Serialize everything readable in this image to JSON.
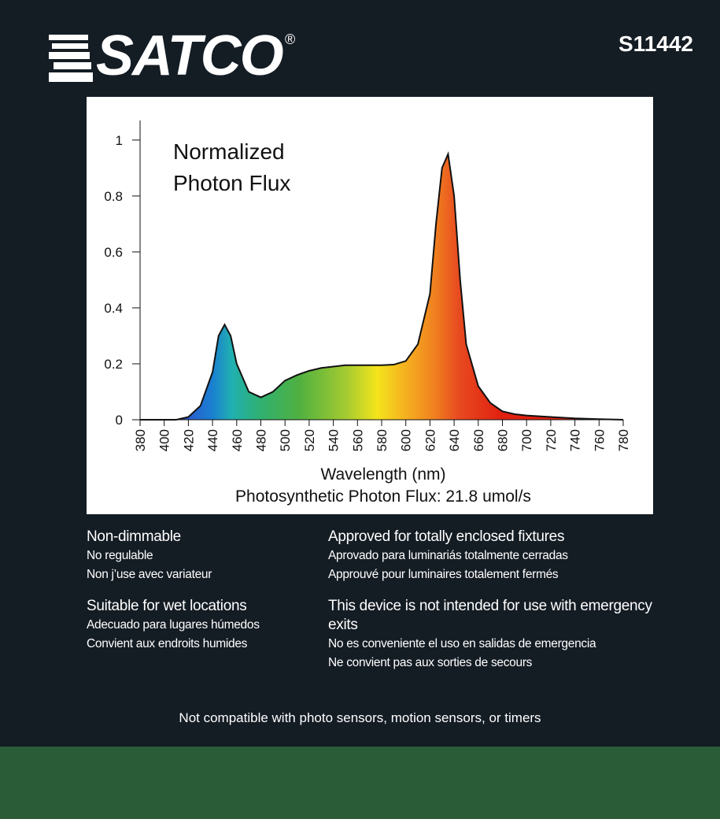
{
  "brand": "SATCO",
  "brand_mark": "®",
  "model": "S11442",
  "chart_data": {
    "type": "area",
    "title": "Normalized Photon Flux",
    "xlabel": "Wavelength (nm)",
    "annotation": "Photosynthetic Photon Flux: 21.8 umol/s",
    "x": [
      380,
      390,
      400,
      410,
      420,
      430,
      440,
      445,
      450,
      455,
      460,
      470,
      480,
      490,
      500,
      510,
      520,
      530,
      540,
      550,
      560,
      570,
      580,
      590,
      600,
      610,
      620,
      625,
      630,
      635,
      640,
      645,
      650,
      660,
      670,
      680,
      690,
      700,
      720,
      740,
      760,
      780
    ],
    "values": [
      0,
      0,
      0,
      0,
      0.01,
      0.05,
      0.17,
      0.3,
      0.34,
      0.3,
      0.2,
      0.1,
      0.08,
      0.1,
      0.14,
      0.16,
      0.175,
      0.185,
      0.19,
      0.195,
      0.195,
      0.195,
      0.195,
      0.197,
      0.21,
      0.27,
      0.45,
      0.7,
      0.9,
      0.95,
      0.8,
      0.5,
      0.27,
      0.12,
      0.06,
      0.03,
      0.02,
      0.015,
      0.01,
      0.005,
      0.002,
      0
    ],
    "xlim": [
      380,
      780
    ],
    "xticks": [
      380,
      400,
      420,
      440,
      460,
      480,
      500,
      520,
      540,
      560,
      580,
      600,
      620,
      640,
      660,
      680,
      700,
      720,
      740,
      760,
      780
    ],
    "ylim": [
      0,
      1.07
    ],
    "yticks": [
      0,
      0.2,
      0.4,
      0.6,
      0.8,
      1
    ],
    "grid": false
  },
  "notes": [
    [
      {
        "heading": "Non-dimmable",
        "lines": [
          "No regulable",
          "Non j’use avec variateur"
        ]
      },
      {
        "heading": "Suitable for wet locations",
        "lines": [
          "Adecuado para lugares húmedos",
          "Convient aux endroits humides"
        ]
      }
    ],
    [
      {
        "heading": "Approved for totally enclosed fixtures",
        "lines": [
          "Aprovado para luminariás totalmente cerradas",
          "Approuvé pour luminaires totalement fermés"
        ]
      },
      {
        "heading": "This device is not intended for use with emergency exits",
        "lines": [
          "No es conveniente el uso en salidas de emergencia",
          "Ne convient pas aux sorties de secours"
        ]
      }
    ]
  ],
  "footer": "Not compatible with photo sensors, motion sensors, or timers"
}
